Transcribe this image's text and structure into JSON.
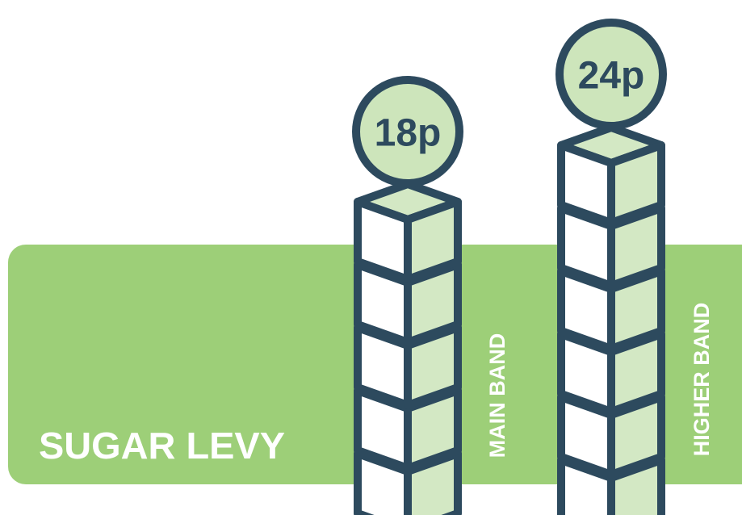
{
  "title": "SUGAR LEVY",
  "bands": [
    {
      "label": "MAIN BAND",
      "rate": "18p"
    },
    {
      "label": "HIGHER BAND",
      "rate": "24p"
    }
  ]
}
